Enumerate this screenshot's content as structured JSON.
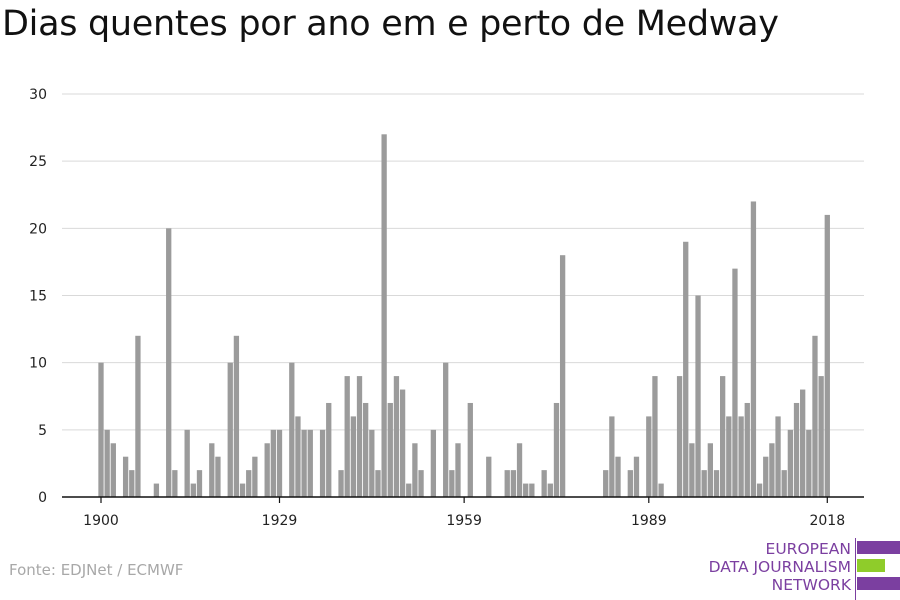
{
  "source": "Fonte: EDJNet / ECMWF",
  "logo": {
    "lines": [
      "EUROPEAN",
      "DATA JOURNALISM",
      "NETWORK"
    ],
    "colors": {
      "purple": "#7b3fa0",
      "green": "#8fcc2a"
    }
  },
  "colors": {
    "bar": "#9b9b9b",
    "grid": "#d9d9d9",
    "axis": "#111111"
  },
  "chart_data": {
    "type": "bar",
    "title": "Dias quentes por ano em e perto de Medway",
    "xlabel": "",
    "ylabel": "",
    "ylim": [
      0,
      30
    ],
    "yticks": [
      0,
      5,
      10,
      15,
      20,
      25,
      30
    ],
    "xticks": [
      1900,
      1929,
      1959,
      1989,
      2018
    ],
    "grid": true,
    "x": [
      1900,
      1901,
      1902,
      1903,
      1904,
      1905,
      1906,
      1907,
      1908,
      1909,
      1910,
      1911,
      1912,
      1913,
      1914,
      1915,
      1916,
      1917,
      1918,
      1919,
      1920,
      1921,
      1922,
      1923,
      1924,
      1925,
      1926,
      1927,
      1928,
      1929,
      1930,
      1931,
      1932,
      1933,
      1934,
      1935,
      1936,
      1937,
      1938,
      1939,
      1940,
      1941,
      1942,
      1943,
      1944,
      1945,
      1946,
      1947,
      1948,
      1949,
      1950,
      1951,
      1952,
      1953,
      1954,
      1955,
      1956,
      1957,
      1958,
      1959,
      1960,
      1961,
      1962,
      1963,
      1964,
      1965,
      1966,
      1967,
      1968,
      1969,
      1970,
      1971,
      1972,
      1973,
      1974,
      1975,
      1976,
      1977,
      1978,
      1979,
      1980,
      1981,
      1982,
      1983,
      1984,
      1985,
      1986,
      1987,
      1988,
      1989,
      1990,
      1991,
      1992,
      1993,
      1994,
      1995,
      1996,
      1997,
      1998,
      1999,
      2000,
      2001,
      2002,
      2003,
      2004,
      2005,
      2006,
      2007,
      2008,
      2009,
      2010,
      2011,
      2012,
      2013,
      2014,
      2015,
      2016,
      2017,
      2018
    ],
    "values": [
      10,
      5,
      4,
      0,
      3,
      2,
      12,
      0,
      0,
      1,
      0,
      20,
      2,
      0,
      5,
      1,
      2,
      0,
      4,
      3,
      0,
      10,
      12,
      1,
      2,
      3,
      0,
      4,
      5,
      5,
      0,
      10,
      6,
      5,
      5,
      0,
      5,
      7,
      0,
      2,
      9,
      6,
      9,
      7,
      5,
      2,
      27,
      7,
      9,
      8,
      1,
      4,
      2,
      0,
      5,
      0,
      10,
      2,
      4,
      0,
      7,
      0,
      0,
      3,
      0,
      0,
      2,
      2,
      4,
      1,
      1,
      0,
      2,
      1,
      7,
      18,
      0,
      0,
      0,
      0,
      0,
      0,
      2,
      6,
      3,
      0,
      2,
      3,
      0,
      6,
      9,
      1,
      0,
      0,
      9,
      19,
      4,
      15,
      2,
      4,
      2,
      9,
      6,
      17,
      6,
      7,
      22,
      1,
      3,
      4,
      6,
      2,
      5,
      7,
      8,
      5,
      12,
      9,
      21
    ]
  }
}
